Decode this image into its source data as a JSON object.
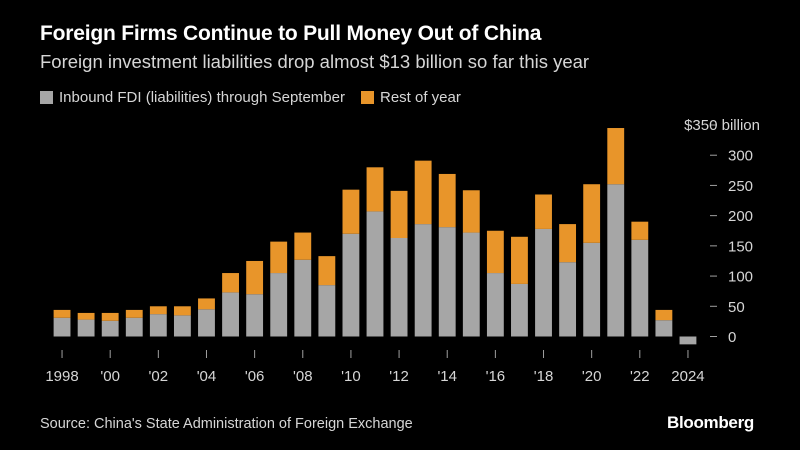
{
  "header": {
    "title": "Foreign Firms Continue to Pull Money Out of China",
    "subtitle": "Foreign investment liabilities drop almost $13 billion so far this year"
  },
  "footer": {
    "source": "Source: China's State Administration of Foreign Exchange",
    "brand": "Bloomberg"
  },
  "colors": {
    "background": "#000000",
    "through_september": "#a6a6a6",
    "rest_of_year": "#e8952a",
    "text": "#d6d6d6"
  },
  "chart_data": {
    "type": "bar",
    "stacked": true,
    "categories": [
      "1998",
      "1999",
      "2000",
      "2001",
      "2002",
      "2003",
      "2004",
      "2005",
      "2006",
      "2007",
      "2008",
      "2009",
      "2010",
      "2011",
      "2012",
      "2013",
      "2014",
      "2015",
      "2016",
      "2017",
      "2018",
      "2019",
      "2020",
      "2021",
      "2022",
      "2023",
      "2024"
    ],
    "x_tick_labels": [
      "1998",
      "",
      "'00",
      "",
      "'02",
      "",
      "'04",
      "",
      "'06",
      "",
      "'08",
      "",
      "'10",
      "",
      "'12",
      "",
      "'14",
      "",
      "'16",
      "",
      "'18",
      "",
      "'20",
      "",
      "'22",
      "",
      "2024"
    ],
    "series": [
      {
        "name": "Inbound FDI (liabilities) through September",
        "values": [
          31,
          28,
          26,
          31,
          37,
          35,
          45,
          73,
          70,
          105,
          127,
          85,
          170,
          207,
          163,
          186,
          181,
          172,
          105,
          87,
          178,
          123,
          155,
          252,
          160,
          27,
          -13
        ]
      },
      {
        "name": "Rest of year",
        "values": [
          13,
          11,
          13,
          13,
          13,
          15,
          18,
          32,
          55,
          52,
          45,
          48,
          73,
          73,
          78,
          105,
          88,
          70,
          70,
          78,
          57,
          63,
          97,
          93,
          30,
          17,
          0
        ]
      }
    ],
    "y_ticks": [
      0,
      50,
      100,
      150,
      200,
      250,
      300,
      350
    ],
    "y_tick_labels": [
      "0",
      "50",
      "100",
      "150",
      "200",
      "250",
      "300",
      "$350 billion"
    ],
    "ylim": [
      -15,
      350
    ],
    "legend_position": "top-left",
    "grid": false,
    "xlabel": "",
    "ylabel": ""
  }
}
